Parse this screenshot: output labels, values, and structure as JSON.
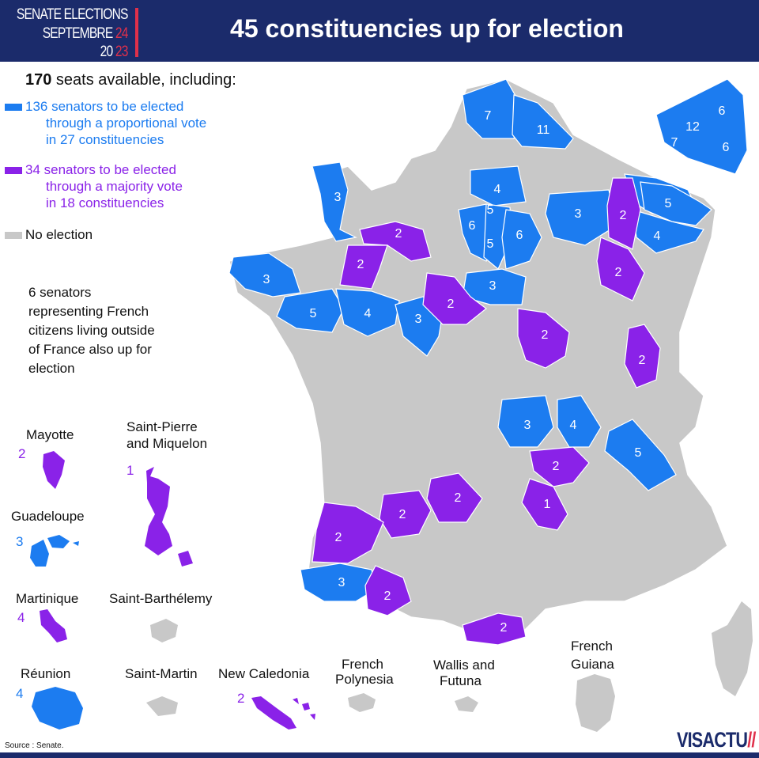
{
  "header": {
    "brand_line1": "SENATE ELECTIONS",
    "brand_line2_a": "SEPTEMBRE ",
    "brand_line2_b": "24",
    "brand_line3_a": "20 ",
    "brand_line3_b": "23",
    "title": "45 constituencies up for election"
  },
  "summary": {
    "seats_count": "170",
    "seats_text": " seats available, including:"
  },
  "legend": {
    "proportional": {
      "line1": "136 senators to be elected",
      "line2": "through a proportional vote",
      "line3": "in 27 constituencies",
      "color": "#1c7cf0"
    },
    "majority": {
      "line1": "34 senators to be elected",
      "line2": "through a majority vote",
      "line3": "in 18 constituencies",
      "color": "#8a22e8"
    },
    "none": {
      "label": "No election",
      "color": "#c8c8c8"
    }
  },
  "outside": {
    "line1": "6 senators",
    "line2": "representing French",
    "line3": "citizens living outside",
    "line4": "of France also up for",
    "line5": "election"
  },
  "overseas": {
    "mayotte": {
      "name": "Mayotte",
      "seats": "2"
    },
    "spm_line1": "Saint-Pierre",
    "spm_line2": "and Miquelon",
    "spm_seats": "1",
    "guadeloupe": {
      "name": "Guadeloupe",
      "seats": "3"
    },
    "martinique": {
      "name": "Martinique",
      "seats": "4"
    },
    "saint_barthelemy": "Saint-Barthélemy",
    "reunion": {
      "name": "Réunion",
      "seats": "4"
    },
    "saint_martin": "Saint-Martin",
    "new_caledonia": {
      "name": "New Caledonia",
      "seats": "2"
    },
    "polynesia_line1": "French",
    "polynesia_line2": "Polynesia",
    "wallis_line1": "Wallis and",
    "wallis_line2": "Futuna",
    "guiana_line1": "French",
    "guiana_line2": "Guiana"
  },
  "metro_seats": {
    "nord": "7",
    "pas_calais": "11",
    "idf_6a": "6",
    "idf_12": "12",
    "idf_7": "7",
    "idf_6b": "6",
    "seine_maritime": "3",
    "oise": "4",
    "aisne_5": "5",
    "idf_inner_6": "6",
    "idf_inner_5": "5",
    "idf_west_6": "6",
    "marne": "3",
    "meuse": "2",
    "moselle": "5",
    "meurthe": "4",
    "orne": "2",
    "mayenne": "2",
    "vosges": "2",
    "loire_atlantique": "3",
    "loiret": "3",
    "loir_cher": "2",
    "loire_atl_5": "5",
    "maine_loire": "4",
    "indre_loire": "3",
    "nievre": "2",
    "haute_saone": "2",
    "allier": "3",
    "saone_loire": "4",
    "ain": "5",
    "loire": "2",
    "haute_loire": "1",
    "correze": "2",
    "dordogne": "2",
    "gironde": "2",
    "pyrenees_atl": "3",
    "gers": "2",
    "aude": "2"
  },
  "footer": {
    "source": "Source : Senate.",
    "logo_a": "VIS",
    "logo_b": "ACTU",
    "logo_c": "//"
  }
}
